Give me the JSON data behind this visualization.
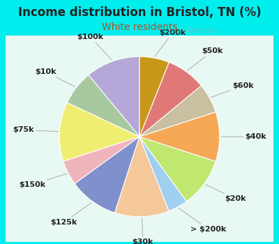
{
  "title": "Income distribution in Bristol, TN (%)",
  "subtitle": "White residents",
  "title_fontsize": 12,
  "subtitle_fontsize": 10,
  "title_color": "#222222",
  "subtitle_color": "#b05020",
  "background_color": "#00EEEE",
  "chart_bg_top": "#f0faf8",
  "chart_bg_bottom": "#d0ede0",
  "labels": [
    "$100k",
    "$10k",
    "$75k",
    "$150k",
    "$125k",
    "$30k",
    "> $200k",
    "$20k",
    "$40k",
    "$60k",
    "$50k",
    "$200k"
  ],
  "values": [
    11,
    7,
    12,
    5,
    10,
    11,
    4,
    10,
    10,
    6,
    8,
    6
  ],
  "colors": [
    "#b5a8d8",
    "#a8c8a0",
    "#f0ee70",
    "#f0b4bc",
    "#8090cc",
    "#f5c89a",
    "#a0d0f0",
    "#c0e870",
    "#f5a855",
    "#c8c0a0",
    "#e07878",
    "#c8981a"
  ],
  "label_fontsize": 8,
  "wedge_linewidth": 0.8,
  "wedge_edgecolor": "#ffffff",
  "startangle": 90,
  "watermark": "City-Data.com",
  "watermark_color": "#aaaaaa",
  "line_color": "#aaaaaa",
  "label_color": "#222222"
}
